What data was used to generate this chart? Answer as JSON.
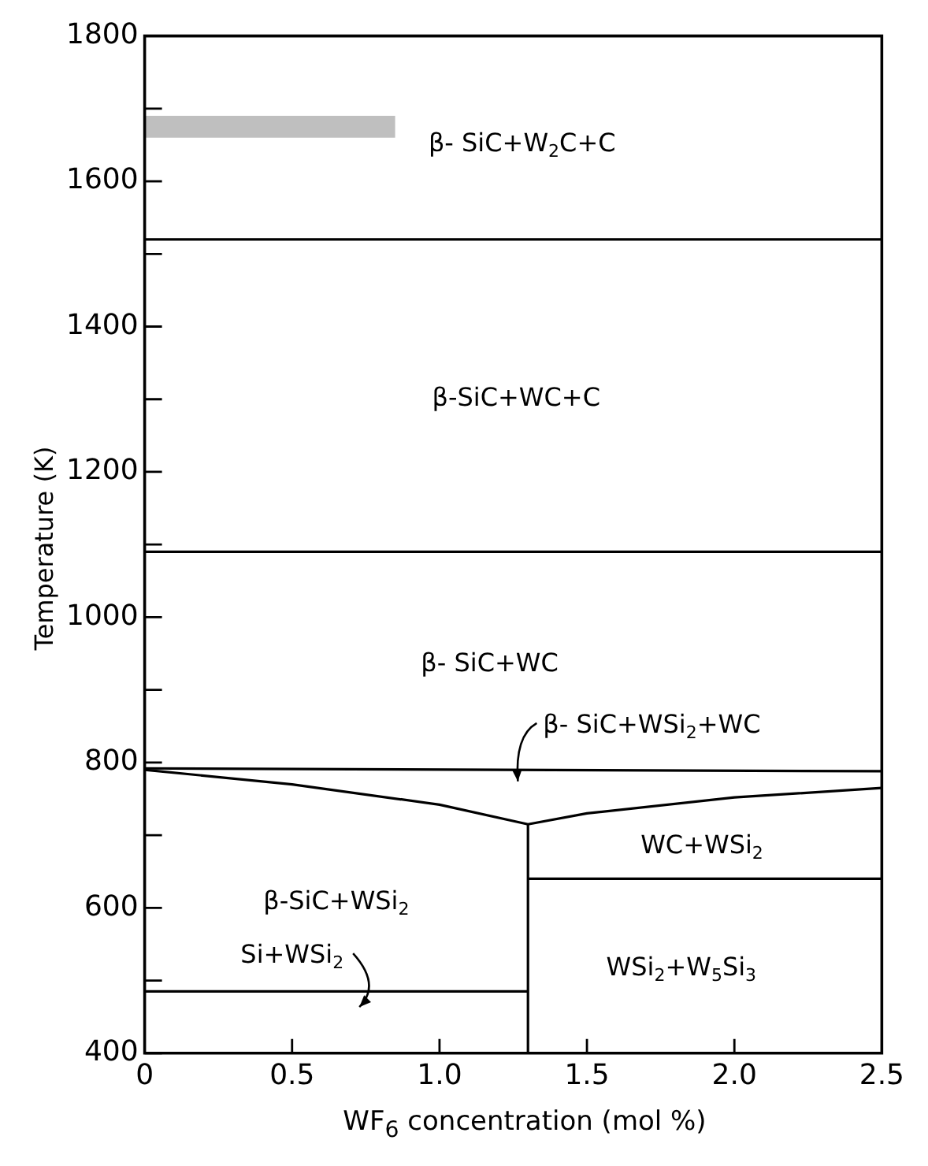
{
  "chart_data": {
    "type": "line",
    "xlabel": "WF$_{6}$ concentration (mol %)",
    "ylabel": "Temperature (K)",
    "xlim": [
      0,
      2.5
    ],
    "xticks": [
      0,
      0.5,
      {
        "value": 1,
        "label": "1.0"
      },
      1.5,
      {
        "value": 2,
        "label": "2.0"
      },
      2.5
    ],
    "ylim": [
      400,
      1800
    ],
    "yticks": [
      400,
      {
        "value": 500,
        "label": null
      },
      600,
      {
        "value": 700,
        "label": null
      },
      800,
      {
        "value": 900,
        "label": null
      },
      1000,
      {
        "value": 1100,
        "label": null
      },
      1200,
      {
        "value": 1300,
        "label": null
      },
      1400,
      {
        "value": 1500,
        "label": null
      },
      1600,
      {
        "value": 1700,
        "label": null
      },
      1800
    ],
    "grid": false,
    "legend": false,
    "marker": "none",
    "line_style": "solid",
    "series": [
      {
        "color": "#000000",
        "x": [
          0,
          2.5
        ],
        "values": [
          1520,
          1520
        ]
      },
      {
        "color": "#000000",
        "x": [
          0,
          2.5
        ],
        "values": [
          1090,
          1090
        ]
      },
      {
        "color": "#000000",
        "x": [
          0,
          2.5
        ],
        "values": [
          792,
          788
        ]
      },
      {
        "color": "#000000",
        "x": [
          0,
          0.5,
          1.0,
          1.3,
          1.5,
          2.0,
          2.5
        ],
        "values": [
          790,
          770,
          742,
          715,
          730,
          752,
          765
        ]
      },
      {
        "color": "#000000",
        "x": [
          1.3,
          1.3
        ],
        "values": [
          400,
          715
        ]
      },
      {
        "color": "#000000",
        "x": [
          1.3,
          2.5
        ],
        "values": [
          640,
          640
        ]
      },
      {
        "color": "#000000",
        "x": [
          0,
          1.3
        ],
        "values": [
          485,
          485
        ]
      },
      {
        "color": "#000000",
        "x": [
          0,
          0.85
        ],
        "values": [
          null,
          null
        ],
        "lower": [
          1660,
          1660
        ],
        "upper": [
          1690,
          1690
        ]
      }
    ],
    "annotations": [
      "β- SiC+W$_{2}$C+C",
      "β-SiC+WC+C",
      "β- SiC+WC",
      "β- SiC+WSi$_{2}$+WC",
      "WC+WSi$_{2}$",
      "β-SiC+WSi$_{2}$",
      "Si+WSi$_{2}$",
      "WSi$_{2}$+W$_{5}$Si$_{3}$"
    ]
  }
}
